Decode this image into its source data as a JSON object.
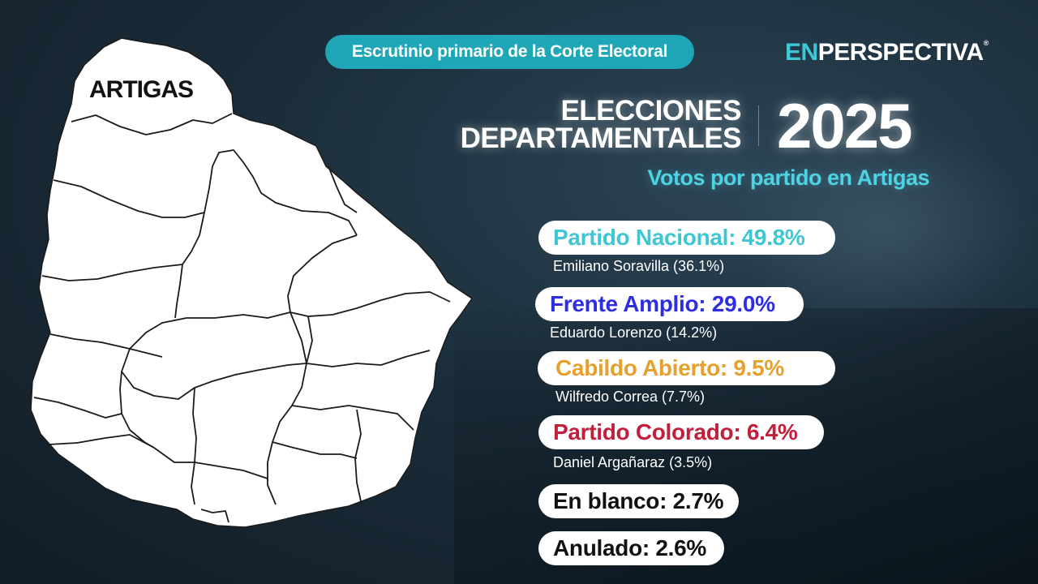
{
  "source_badge": "Escrutinio primario de la Corte Electoral",
  "logo": {
    "part1": "EN",
    "part2": "PERSPECTIVA",
    "mark": "®"
  },
  "title": {
    "line1": "ELECCIONES",
    "line2": "DEPARTAMENTALES",
    "year": "2025"
  },
  "subtitle": "Votos por partido en Artigas",
  "map": {
    "highlight_label": "ARTIGAS",
    "fill": "#ffffff",
    "border": "#1a1a1a"
  },
  "results": [
    {
      "label": "Partido Nacional: 49.8%",
      "percent": 49.8,
      "color": "#3ec7d3",
      "candidate": "Emiliano Soravilla (36.1%)"
    },
    {
      "label": "Frente Amplio: 29.0%",
      "percent": 29.0,
      "color": "#2e2ee0",
      "candidate": "Eduardo Lorenzo (14.2%)"
    },
    {
      "label": "Cabildo Abierto: 9.5%",
      "percent": 9.5,
      "color": "#e6a02c",
      "candidate": "Wilfredo Correa (7.7%)"
    },
    {
      "label": "Partido Colorado: 6.4%",
      "percent": 6.4,
      "color": "#c21f3a",
      "candidate": "Daniel Argañaraz (3.5%)"
    },
    {
      "label": "En blanco: 2.7%",
      "percent": 2.7,
      "color": "#111111"
    },
    {
      "label": "Anulado: 2.6%",
      "percent": 2.6,
      "color": "#111111"
    }
  ]
}
